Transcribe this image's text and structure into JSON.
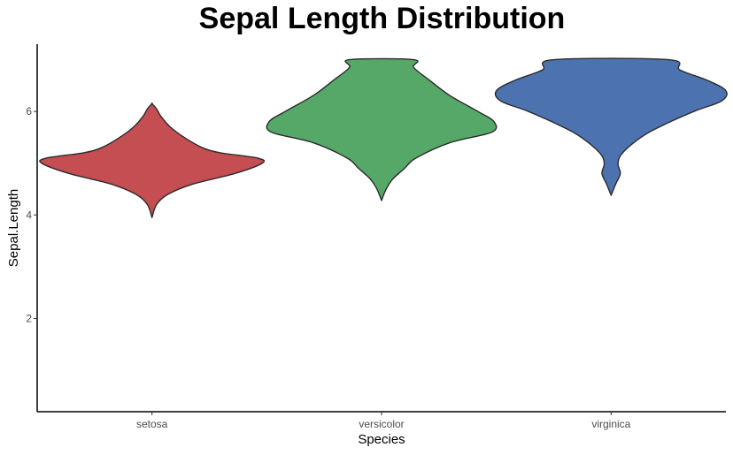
{
  "chart_data": {
    "type": "violin",
    "title": "Sepal Length Distribution",
    "xlabel": "Species",
    "ylabel": "Sepal.Length",
    "categories": [
      "setosa",
      "versicolor",
      "virginica"
    ],
    "colors": [
      "#c44e52",
      "#55a868",
      "#4c72b0"
    ],
    "outline_color": "#2b2b2b",
    "yticks": [
      2,
      4,
      6
    ],
    "ylim": [
      0.2,
      7.3
    ],
    "grid": false,
    "legend": "none",
    "series": [
      {
        "category": "setosa",
        "y": [
          3.95,
          4.2,
          4.4,
          4.6,
          4.8,
          5.0,
          5.1,
          5.2,
          5.3,
          5.5,
          5.7,
          5.9,
          6.05,
          6.15
        ],
        "halfwidth": [
          0.0,
          0.02,
          0.07,
          0.18,
          0.36,
          0.48,
          0.46,
          0.3,
          0.22,
          0.14,
          0.08,
          0.04,
          0.02,
          0.0
        ]
      },
      {
        "category": "versicolor",
        "y": [
          4.28,
          4.5,
          4.7,
          4.9,
          5.1,
          5.4,
          5.6,
          5.8,
          6.0,
          6.3,
          6.6,
          6.85,
          7.0
        ],
        "halfwidth": [
          0.0,
          0.02,
          0.05,
          0.1,
          0.15,
          0.3,
          0.48,
          0.49,
          0.42,
          0.3,
          0.21,
          0.14,
          0.14
        ]
      },
      {
        "category": "virginica",
        "y": [
          4.38,
          4.6,
          4.8,
          5.0,
          5.2,
          5.5,
          5.7,
          6.0,
          6.2,
          6.4,
          6.6,
          6.8,
          7.0
        ],
        "halfwidth": [
          0.0,
          0.02,
          0.04,
          0.03,
          0.05,
          0.13,
          0.21,
          0.36,
          0.48,
          0.5,
          0.42,
          0.3,
          0.25
        ]
      }
    ]
  }
}
